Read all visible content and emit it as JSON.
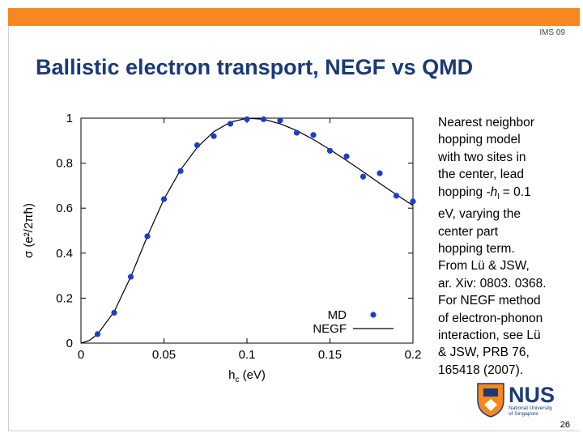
{
  "header": {
    "event_tag": "IMS 09",
    "title": "Ballistic electron transport, NEGF vs QMD",
    "accent_color": "#f6881f",
    "title_color": "#1a3a78"
  },
  "side_note": {
    "line1": "Nearest neighbor",
    "line2": "hopping model",
    "line3": "with two sites in",
    "line4": "the center, lead",
    "line5_pre": "hopping -",
    "line5_h": "h",
    "line5_sub": "l",
    "line5_post": " = 0.1",
    "line6": "eV, varying the",
    "line7": "center part",
    "line8": "hopping term.",
    "line9": "From Lü & JSW,",
    "line10": "ar. Xiv: 0803. 0368.",
    "line11": "For NEGF method",
    "line12": "of electron-phonon",
    "line13": "interaction, see Lü",
    "line14": "& JSW, PRB 76,",
    "line15": "165418 (2007)."
  },
  "logo": {
    "text": "NUS",
    "subtitle_1": "National University",
    "subtitle_2": "of Singapore",
    "icon": "nus-crest-icon"
  },
  "footer": {
    "page_number": "26"
  },
  "chart_data": {
    "type": "scatter",
    "xlabel": "h",
    "xlabel_sub": "c",
    "xlabel_unit": " (eV)",
    "ylabel": "σ (e²/2πħ)",
    "xlim": [
      0,
      0.2
    ],
    "ylim": [
      0,
      1
    ],
    "x_ticks": [
      "0",
      "0.05",
      "0.1",
      "0.15",
      "0.2"
    ],
    "y_ticks": [
      "0",
      "0.2",
      "0.4",
      "0.6",
      "0.8",
      "1"
    ],
    "grid": false,
    "legend_position": "bottom-right",
    "series": [
      {
        "name": "MD",
        "style": "points",
        "color": "#1a3fcc",
        "x": [
          0.01,
          0.02,
          0.03,
          0.04,
          0.05,
          0.06,
          0.07,
          0.08,
          0.09,
          0.1,
          0.11,
          0.12,
          0.13,
          0.14,
          0.15,
          0.16,
          0.17,
          0.18,
          0.19,
          0.2
        ],
        "y": [
          0.04,
          0.135,
          0.295,
          0.475,
          0.64,
          0.765,
          0.88,
          0.92,
          0.975,
          0.995,
          0.995,
          0.99,
          0.935,
          0.925,
          0.855,
          0.83,
          0.74,
          0.755,
          0.655,
          0.63
        ]
      },
      {
        "name": "NEGF",
        "style": "line",
        "color": "#000000",
        "x": [
          0.0,
          0.005,
          0.01,
          0.02,
          0.03,
          0.04,
          0.05,
          0.06,
          0.07,
          0.08,
          0.09,
          0.1,
          0.11,
          0.12,
          0.13,
          0.14,
          0.15,
          0.16,
          0.17,
          0.18,
          0.19,
          0.2
        ],
        "y": [
          0.0,
          0.012,
          0.04,
          0.14,
          0.295,
          0.475,
          0.64,
          0.77,
          0.87,
          0.94,
          0.982,
          1.0,
          0.995,
          0.975,
          0.945,
          0.905,
          0.86,
          0.812,
          0.762,
          0.71,
          0.66,
          0.612
        ]
      }
    ]
  }
}
